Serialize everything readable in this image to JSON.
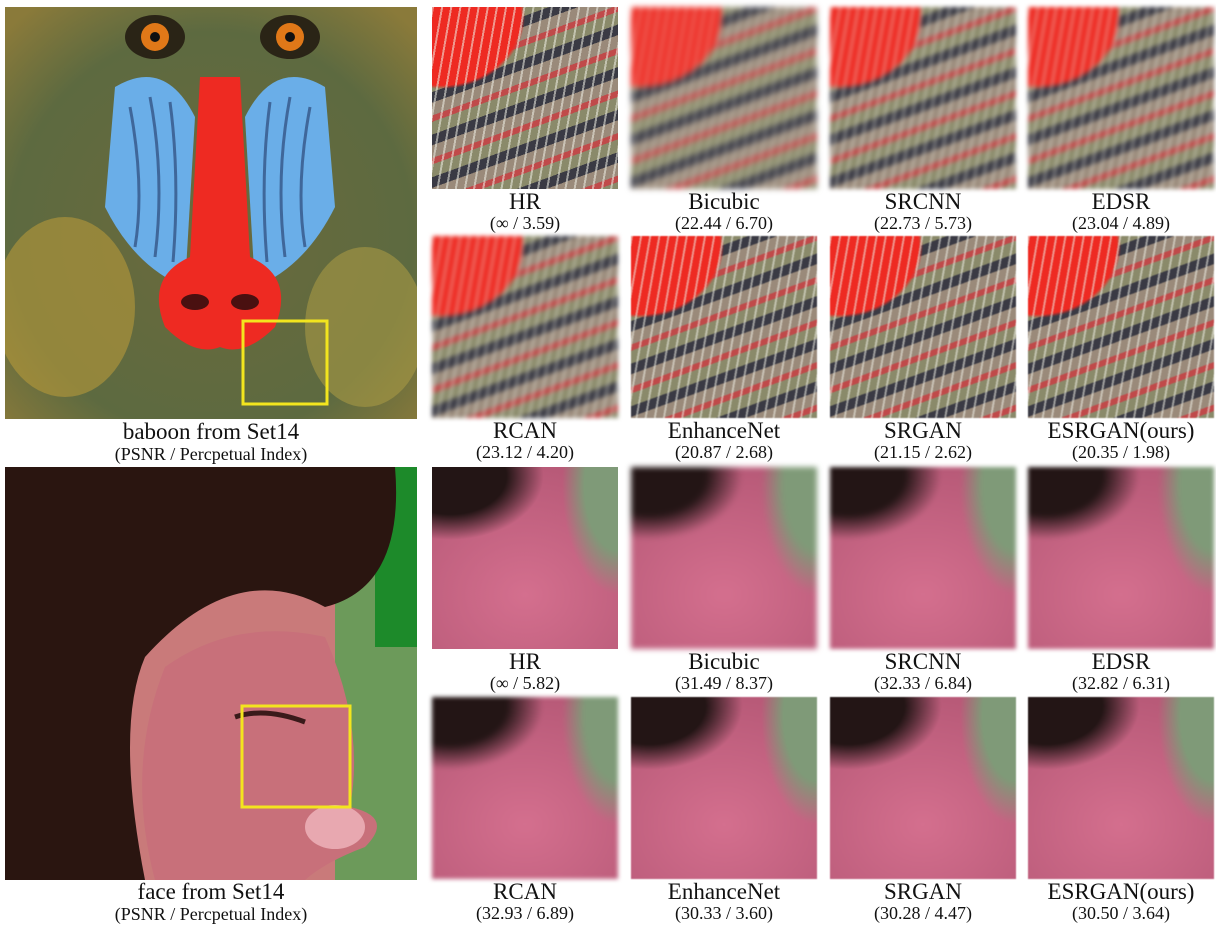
{
  "figures": [
    {
      "image_caption": "baboon from Set14",
      "metric_caption": "(PSNR / Percpetual Index)",
      "crops": [
        {
          "method": "HR",
          "metrics": "(∞ / 3.59)"
        },
        {
          "method": "Bicubic",
          "metrics": "(22.44 / 6.70)"
        },
        {
          "method": "SRCNN",
          "metrics": "(22.73 / 5.73)"
        },
        {
          "method": "EDSR",
          "metrics": "(23.04 / 4.89)"
        },
        {
          "method": "RCAN",
          "metrics": "(23.12 / 4.20)"
        },
        {
          "method": "EnhanceNet",
          "metrics": "(20.87 / 2.68)"
        },
        {
          "method": "SRGAN",
          "metrics": "(21.15 / 2.62)"
        },
        {
          "method": "ESRGAN(ours)",
          "metrics": "(20.35 / 1.98)"
        }
      ]
    },
    {
      "image_caption": "face from Set14",
      "metric_caption": "(PSNR / Percpetual Index)",
      "crops": [
        {
          "method": "HR",
          "metrics": "(∞ / 5.82)"
        },
        {
          "method": "Bicubic",
          "metrics": "(31.49 / 8.37)"
        },
        {
          "method": "SRCNN",
          "metrics": "(32.33 / 6.84)"
        },
        {
          "method": "EDSR",
          "metrics": "(32.82 / 6.31)"
        },
        {
          "method": "RCAN",
          "metrics": "(32.93 / 6.89)"
        },
        {
          "method": "EnhanceNet",
          "metrics": "(30.33 / 3.60)"
        },
        {
          "method": "SRGAN",
          "metrics": "(30.28 / 4.47)"
        },
        {
          "method": "ESRGAN(ours)",
          "metrics": "(30.50 / 3.64)"
        }
      ]
    }
  ]
}
